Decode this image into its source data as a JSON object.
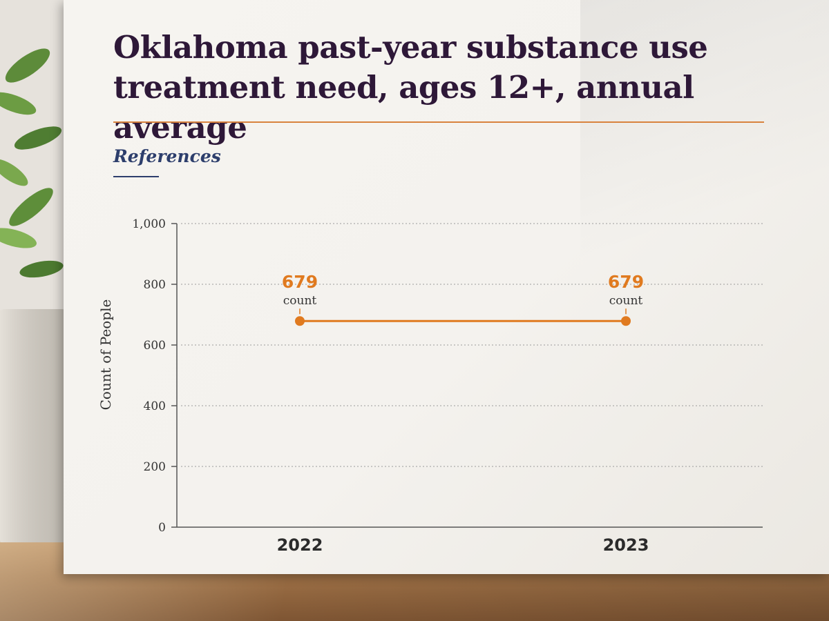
{
  "chart_data": {
    "type": "line",
    "title": "Oklahoma past-year substance use treatment need, ages 12+, annual average",
    "subtitle": "References",
    "ylabel": "Count of People",
    "xlabel": "",
    "categories": [
      "2022",
      "2023"
    ],
    "series": [
      {
        "values": [
          679,
          679
        ],
        "point_label_unit": "count"
      }
    ],
    "ylim": [
      0,
      1000
    ],
    "yticks": [
      0,
      200,
      400,
      600,
      800,
      1000
    ],
    "ytick_labels": [
      "0",
      "200",
      "400",
      "600",
      "800",
      "1,000"
    ],
    "grid": true,
    "legend": "none",
    "colors": {
      "series": "#e07a1f",
      "axis": "#555555",
      "title": "#2e1838",
      "subtitle": "#2d3e6c",
      "rule": "#d8823d"
    }
  }
}
